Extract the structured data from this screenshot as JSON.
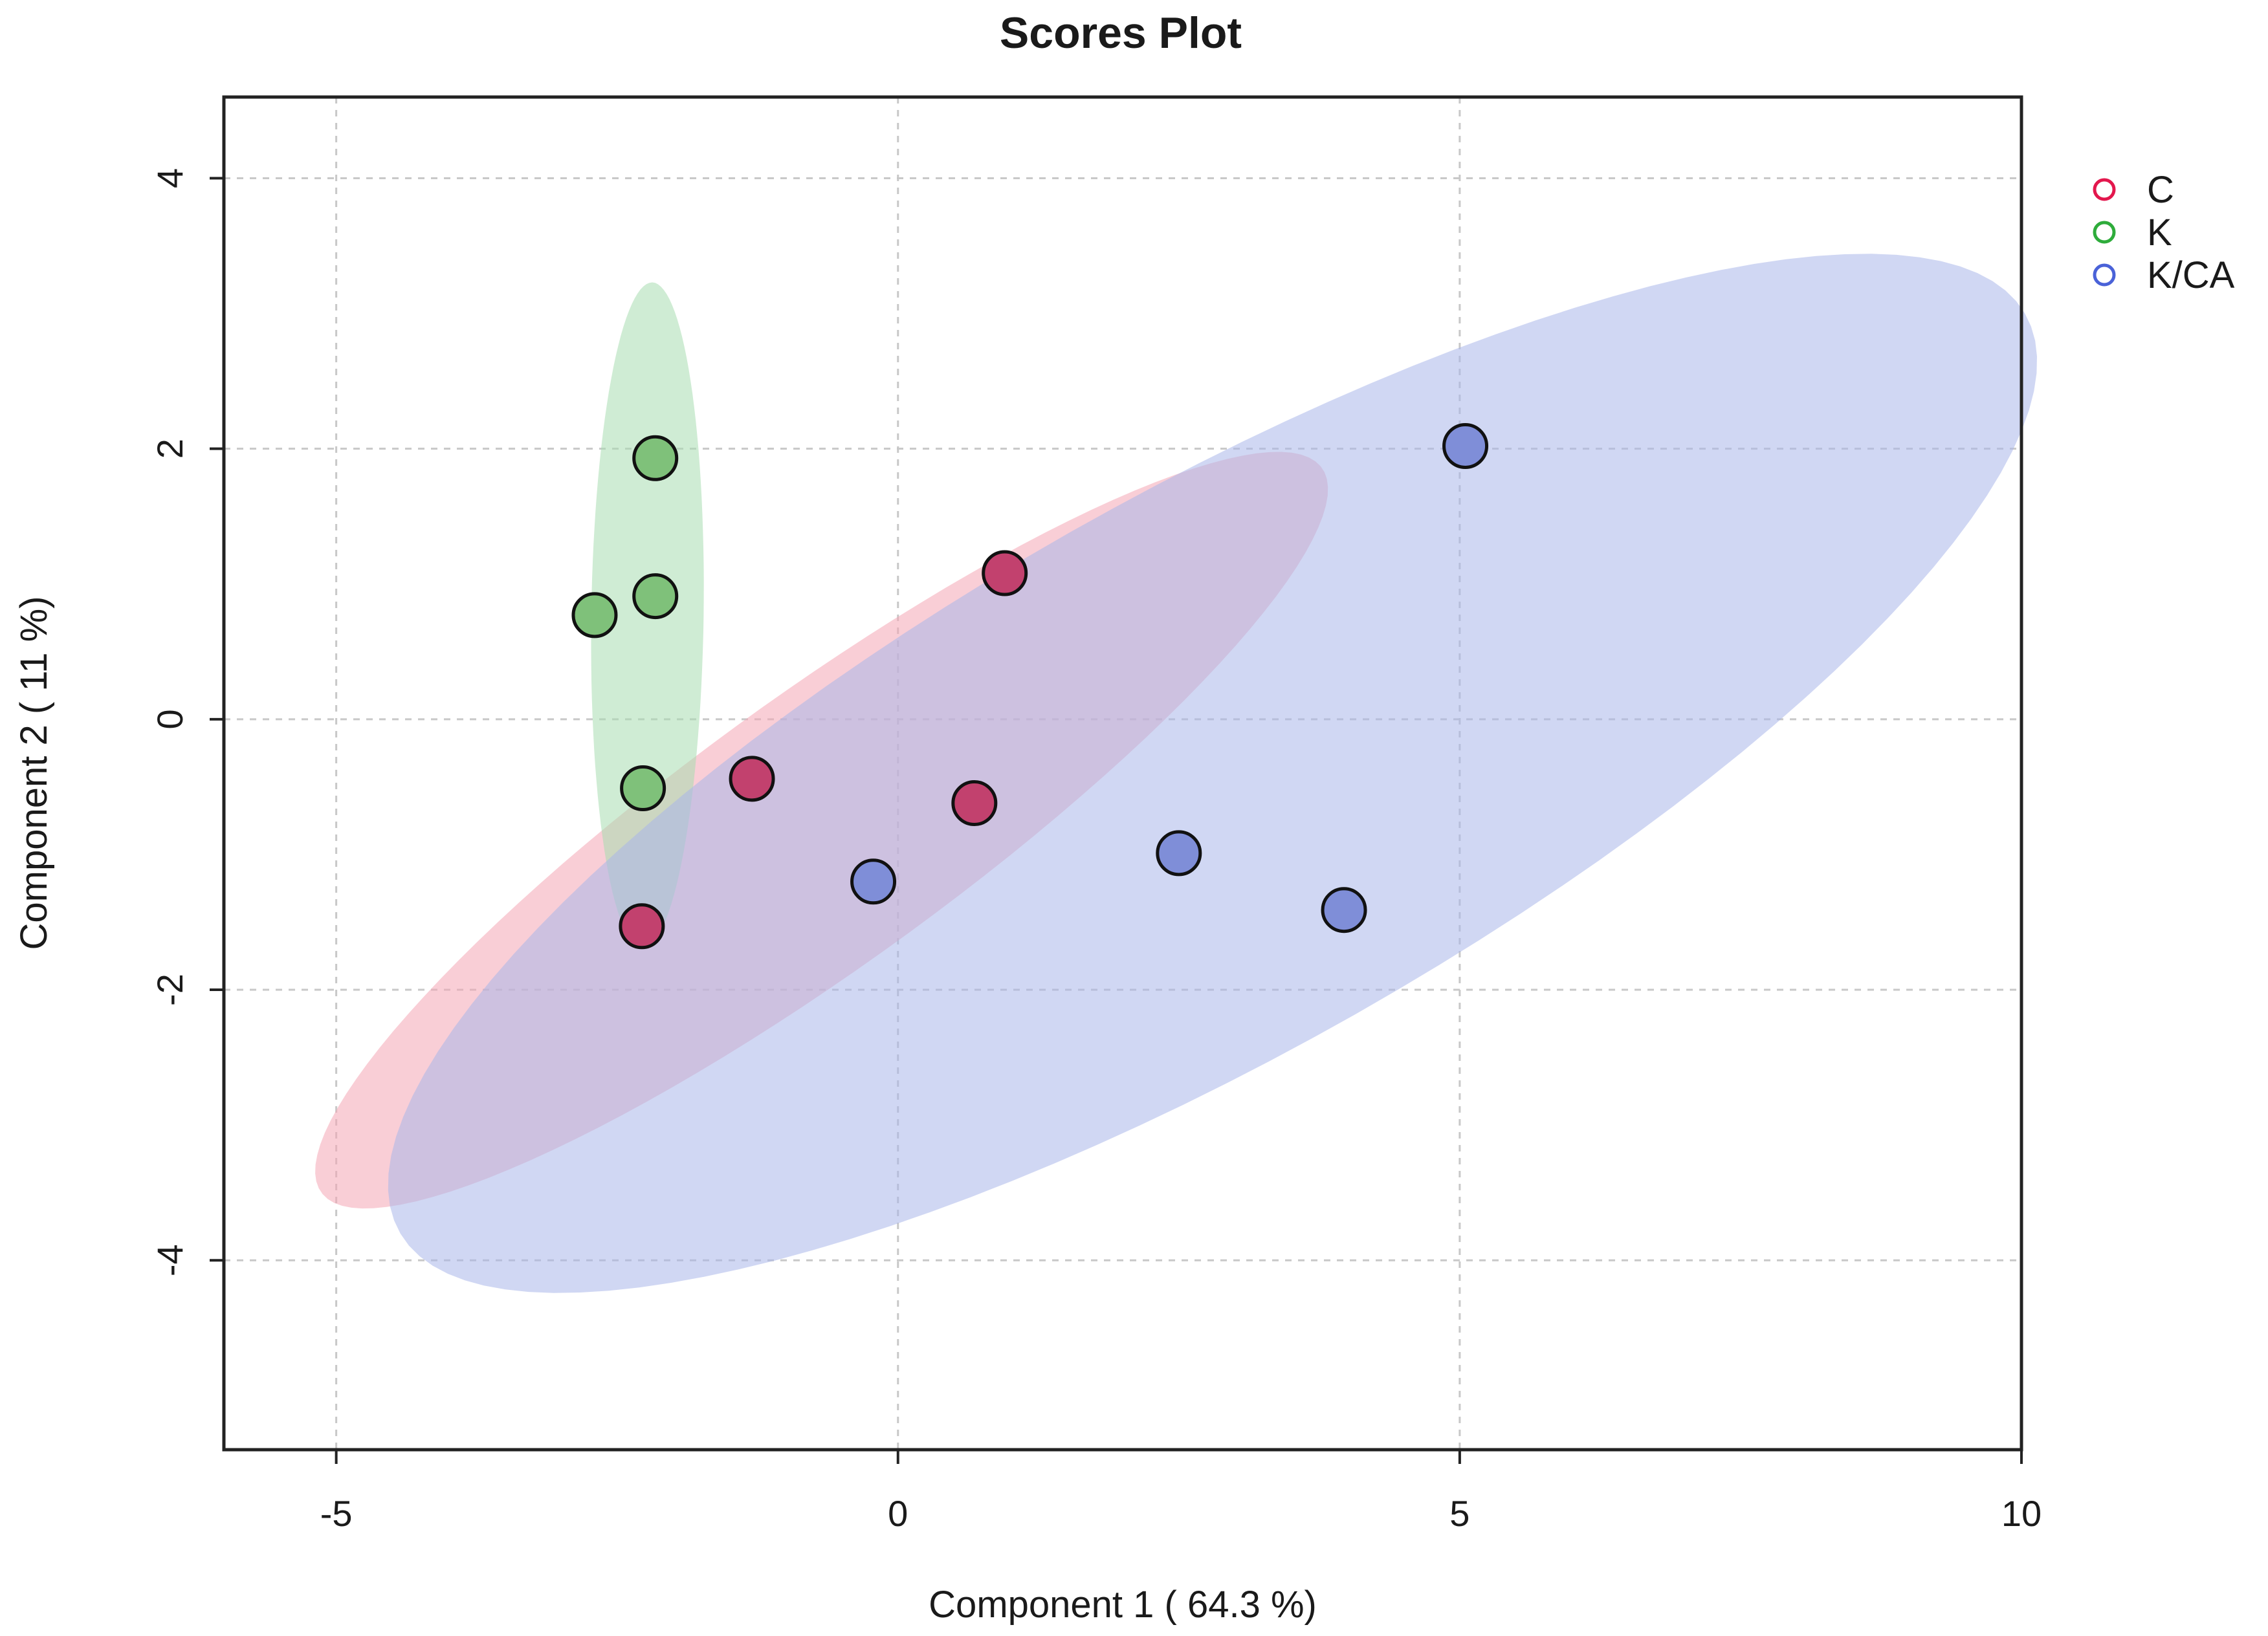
{
  "chart_data": {
    "type": "scatter",
    "title": "Scores Plot",
    "xlabel": "Component 1 ( 64.3 %)",
    "ylabel": "Component 2 ( 11 %)",
    "xlim": [
      -6,
      10
    ],
    "ylim": [
      -5.4,
      4.6
    ],
    "x_ticks": [
      -5,
      0,
      5,
      10
    ],
    "y_ticks": [
      -4,
      -2,
      0,
      2,
      4
    ],
    "grid": true,
    "legend_position": "right, outside plot",
    "series": [
      {
        "name": "C",
        "color": "#e3174d",
        "fill": "#c2416e",
        "ellipse_fill": "#f4a6b5",
        "points": [
          {
            "x": 0.95,
            "y": 1.08
          },
          {
            "x": -1.3,
            "y": -0.44
          },
          {
            "x": 0.68,
            "y": -0.62
          },
          {
            "x": -2.28,
            "y": -1.53
          }
        ],
        "ellipse": {
          "cx": -0.68,
          "cy": -0.82,
          "rx": 5.2,
          "ry": 1.05,
          "angle_deg": 30.6
        }
      },
      {
        "name": "K",
        "color": "#2eac3b",
        "fill": "#7fc17a",
        "ellipse_fill": "#a8ddb0",
        "points": [
          {
            "x": -2.16,
            "y": 1.93
          },
          {
            "x": -2.16,
            "y": 0.91
          },
          {
            "x": -2.7,
            "y": 0.77
          },
          {
            "x": -2.27,
            "y": -0.51
          }
        ],
        "ellipse": {
          "cx": -2.23,
          "cy": 0.77,
          "rx": 0.5,
          "ry": 2.46,
          "angle_deg": -1.0
        }
      },
      {
        "name": "K/CA",
        "color": "#4a62d8",
        "fill": "#7f8ed8",
        "ellipse_fill": "#aab6ea",
        "points": [
          {
            "x": 5.05,
            "y": 2.02
          },
          {
            "x": -0.22,
            "y": -1.2
          },
          {
            "x": 2.5,
            "y": -0.99
          },
          {
            "x": 3.97,
            "y": -1.41
          }
        ],
        "ellipse": {
          "cx": 2.8,
          "cy": -0.4,
          "rx": 8.0,
          "ry": 2.15,
          "angle_deg": 24.4
        }
      }
    ]
  }
}
